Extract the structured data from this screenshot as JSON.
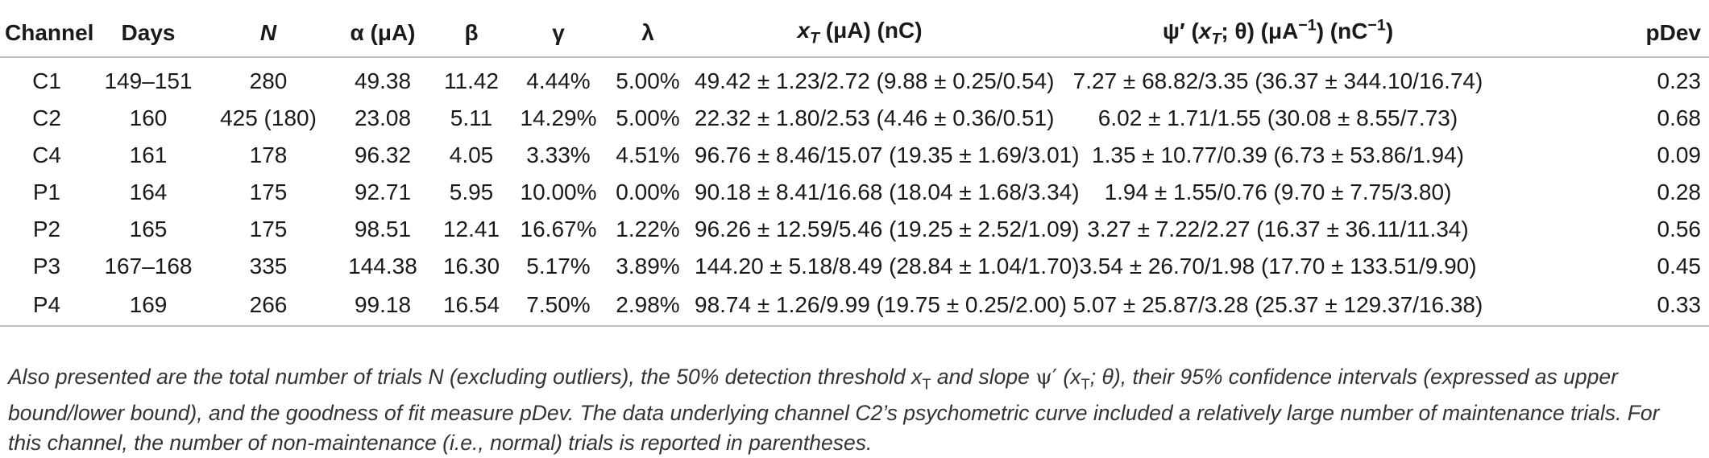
{
  "table": {
    "headers": {
      "channel": "Channel",
      "days": "Days",
      "n": "N",
      "alpha": "α (μA)",
      "beta": "β",
      "gamma": "γ",
      "lambda": "λ",
      "xt": "xT (μA) (nC)",
      "psi": "ψ′ (xT; θ) (μA−1) (nC−1)",
      "pdev": "pDev"
    },
    "rows": [
      {
        "channel": "C1",
        "days": "149–151",
        "n": "280",
        "alpha": "49.38",
        "beta": "11.42",
        "gamma": "4.44%",
        "lambda": "5.00%",
        "xt": "49.42 ± 1.23/2.72 (9.88 ± 0.25/0.54)",
        "psi": "7.27 ± 68.82/3.35 (36.37 ± 344.10/16.74)",
        "pdev": "0.23"
      },
      {
        "channel": "C2",
        "days": "160",
        "n": "425 (180)",
        "alpha": "23.08",
        "beta": "5.11",
        "gamma": "14.29%",
        "lambda": "5.00%",
        "xt": "22.32 ± 1.80/2.53 (4.46 ± 0.36/0.51)",
        "psi": "6.02 ± 1.71/1.55 (30.08 ± 8.55/7.73)",
        "pdev": "0.68"
      },
      {
        "channel": "C4",
        "days": "161",
        "n": "178",
        "alpha": "96.32",
        "beta": "4.05",
        "gamma": "3.33%",
        "lambda": "4.51%",
        "xt": "96.76 ± 8.46/15.07 (19.35 ± 1.69/3.01)",
        "psi": "1.35 ± 10.77/0.39 (6.73 ± 53.86/1.94)",
        "pdev": "0.09"
      },
      {
        "channel": "P1",
        "days": "164",
        "n": "175",
        "alpha": "92.71",
        "beta": "5.95",
        "gamma": "10.00%",
        "lambda": "0.00%",
        "xt": "90.18 ± 8.41/16.68 (18.04 ± 1.68/3.34)",
        "psi": "1.94 ± 1.55/0.76 (9.70 ± 7.75/3.80)",
        "pdev": "0.28"
      },
      {
        "channel": "P2",
        "days": "165",
        "n": "175",
        "alpha": "98.51",
        "beta": "12.41",
        "gamma": "16.67%",
        "lambda": "1.22%",
        "xt": "96.26 ± 12.59/5.46 (19.25 ± 2.52/1.09)",
        "psi": "3.27 ± 7.22/2.27 (16.37 ± 36.11/11.34)",
        "pdev": "0.56"
      },
      {
        "channel": "P3",
        "days": "167–168",
        "n": "335",
        "alpha": "144.38",
        "beta": "16.30",
        "gamma": "5.17%",
        "lambda": "3.89%",
        "xt": "144.20 ± 5.18/8.49 (28.84 ± 1.04/1.70)",
        "psi": "3.54 ± 26.70/1.98 (17.70 ± 133.51/9.90)",
        "pdev": "0.45"
      },
      {
        "channel": "P4",
        "days": "169",
        "n": "266",
        "alpha": "99.18",
        "beta": "16.54",
        "gamma": "7.50%",
        "lambda": "2.98%",
        "xt": "98.74 ± 1.26/9.99 (19.75 ± 0.25/2.00)",
        "psi": "5.07 ± 25.87/3.28 (25.37 ± 129.37/16.38)",
        "pdev": "0.33"
      }
    ]
  },
  "caption": {
    "part1": "Also presented are the total number of trials N (excluding outliers), the 50% detection threshold ",
    "xt_symbol": "x",
    "xt_sub": "T",
    "part2": " and slope ",
    "psi_symbol": "ψ′",
    "psi_args_open": " (x",
    "psi_args_sub": "T",
    "psi_args_close": "; θ)",
    "part3": ", their 95% confidence intervals (expressed as upper bound/lower bound), and the goodness of fit measure pDev. The data underlying channel C2’s psychometric curve included a relatively large number of maintenance trials. For this channel, the number of non-maintenance (i.e., normal) trials is reported in parentheses."
  }
}
